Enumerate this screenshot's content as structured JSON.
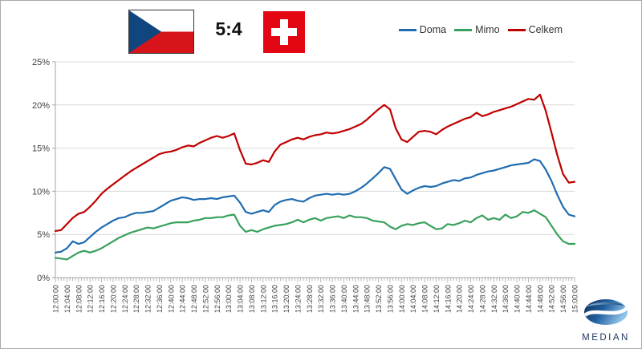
{
  "header": {
    "score": "5:4",
    "flags": {
      "czech": {
        "white": "#FFFFFF",
        "red": "#D7141A",
        "blue": "#11457E"
      },
      "swiss": {
        "red": "#E30613",
        "cross": "#FFFFFF"
      }
    }
  },
  "legend": {
    "position": "top-right"
  },
  "branding": {
    "logo_text": "MEDIAN",
    "logo_color": "#1F3864"
  },
  "chart_data": {
    "type": "line",
    "title": "",
    "xlabel": "",
    "ylabel": "",
    "grid": true,
    "legend_position": "top-right",
    "y_axis": {
      "min": 0,
      "max": 25,
      "tick_step": 5,
      "tick_labels": [
        "0%",
        "5%",
        "10%",
        "15%",
        "20%",
        "25%"
      ]
    },
    "x_axis": {
      "start": "12:00:00",
      "end": "15:00:00",
      "total_min": 180,
      "label_interval_min": 4,
      "minor_tick_min": 1,
      "labels": [
        "12:00:00",
        "12:04:00",
        "12:08:00",
        "12:12:00",
        "12:16:00",
        "12:20:00",
        "12:24:00",
        "12:28:00",
        "12:32:00",
        "12:36:00",
        "12:40:00",
        "12:44:00",
        "12:48:00",
        "12:52:00",
        "12:56:00",
        "13:00:00",
        "13:04:00",
        "13:08:00",
        "13:12:00",
        "13:16:00",
        "13:20:00",
        "13:24:00",
        "13:28:00",
        "13:32:00",
        "13:36:00",
        "13:40:00",
        "13:44:00",
        "13:48:00",
        "13:52:00",
        "13:56:00",
        "14:00:00",
        "14:04:00",
        "14:08:00",
        "14:12:00",
        "14:16:00",
        "14:20:00",
        "14:24:00",
        "14:28:00",
        "14:32:00",
        "14:36:00",
        "14:40:00",
        "14:44:00",
        "14:48:00",
        "14:52:00",
        "14:56:00",
        "15:00:00"
      ]
    },
    "x_step_min": 2,
    "unit": "%",
    "series": [
      {
        "name": "Doma",
        "color": "#1F6CB0",
        "values": [
          2.9,
          3.0,
          3.4,
          4.2,
          3.9,
          4.1,
          4.7,
          5.3,
          5.8,
          6.2,
          6.6,
          6.9,
          7.0,
          7.3,
          7.5,
          7.5,
          7.6,
          7.7,
          8.1,
          8.5,
          8.9,
          9.1,
          9.3,
          9.2,
          9.0,
          9.1,
          9.1,
          9.2,
          9.1,
          9.3,
          9.4,
          9.5,
          8.7,
          7.6,
          7.4,
          7.6,
          7.8,
          7.6,
          8.4,
          8.8,
          9.0,
          9.1,
          8.9,
          8.8,
          9.2,
          9.5,
          9.6,
          9.7,
          9.6,
          9.7,
          9.6,
          9.7,
          10.0,
          10.4,
          10.9,
          11.5,
          12.1,
          12.8,
          12.6,
          11.4,
          10.2,
          9.7,
          10.1,
          10.4,
          10.6,
          10.5,
          10.6,
          10.9,
          11.1,
          11.3,
          11.2,
          11.5,
          11.6,
          11.9,
          12.1,
          12.3,
          12.4,
          12.6,
          12.8,
          13.0,
          13.1,
          13.2,
          13.3,
          13.7,
          13.5,
          12.5,
          11.2,
          9.6,
          8.2,
          7.3,
          7.1
        ]
      },
      {
        "name": "Mimo",
        "color": "#38A05C",
        "values": [
          2.3,
          2.2,
          2.1,
          2.5,
          2.9,
          3.1,
          2.9,
          3.1,
          3.4,
          3.8,
          4.2,
          4.6,
          4.9,
          5.2,
          5.4,
          5.6,
          5.8,
          5.7,
          5.9,
          6.1,
          6.3,
          6.4,
          6.4,
          6.4,
          6.6,
          6.7,
          6.9,
          6.9,
          7.0,
          7.0,
          7.2,
          7.3,
          6.0,
          5.3,
          5.5,
          5.3,
          5.6,
          5.8,
          6.0,
          6.1,
          6.2,
          6.4,
          6.7,
          6.4,
          6.7,
          6.9,
          6.6,
          6.9,
          7.0,
          7.1,
          6.9,
          7.2,
          7.0,
          7.0,
          6.9,
          6.6,
          6.5,
          6.4,
          5.9,
          5.6,
          6.0,
          6.2,
          6.1,
          6.3,
          6.4,
          6.0,
          5.6,
          5.7,
          6.2,
          6.1,
          6.3,
          6.6,
          6.4,
          6.9,
          7.2,
          6.7,
          6.9,
          6.7,
          7.3,
          6.9,
          7.1,
          7.6,
          7.5,
          7.8,
          7.4,
          7.0,
          6.0,
          5.0,
          4.2,
          3.9,
          3.9
        ]
      },
      {
        "name": "Celkem",
        "color": "#C00000",
        "values": [
          5.4,
          5.5,
          6.2,
          6.9,
          7.4,
          7.6,
          8.2,
          8.9,
          9.7,
          10.3,
          10.8,
          11.3,
          11.8,
          12.3,
          12.7,
          13.1,
          13.5,
          13.9,
          14.3,
          14.5,
          14.6,
          14.8,
          15.1,
          15.3,
          15.2,
          15.6,
          15.9,
          16.2,
          16.4,
          16.2,
          16.4,
          16.7,
          14.8,
          13.2,
          13.1,
          13.3,
          13.6,
          13.4,
          14.6,
          15.4,
          15.7,
          16.0,
          16.2,
          16.0,
          16.3,
          16.5,
          16.6,
          16.8,
          16.7,
          16.8,
          17.0,
          17.2,
          17.5,
          17.8,
          18.3,
          18.9,
          19.5,
          20.0,
          19.5,
          17.3,
          16.0,
          15.7,
          16.3,
          16.9,
          17.0,
          16.9,
          16.6,
          17.1,
          17.5,
          17.8,
          18.1,
          18.4,
          18.6,
          19.1,
          18.7,
          18.9,
          19.2,
          19.4,
          19.6,
          19.8,
          20.1,
          20.4,
          20.7,
          20.6,
          21.2,
          19.3,
          16.8,
          14.2,
          12.0,
          11.0,
          11.1
        ]
      }
    ]
  }
}
